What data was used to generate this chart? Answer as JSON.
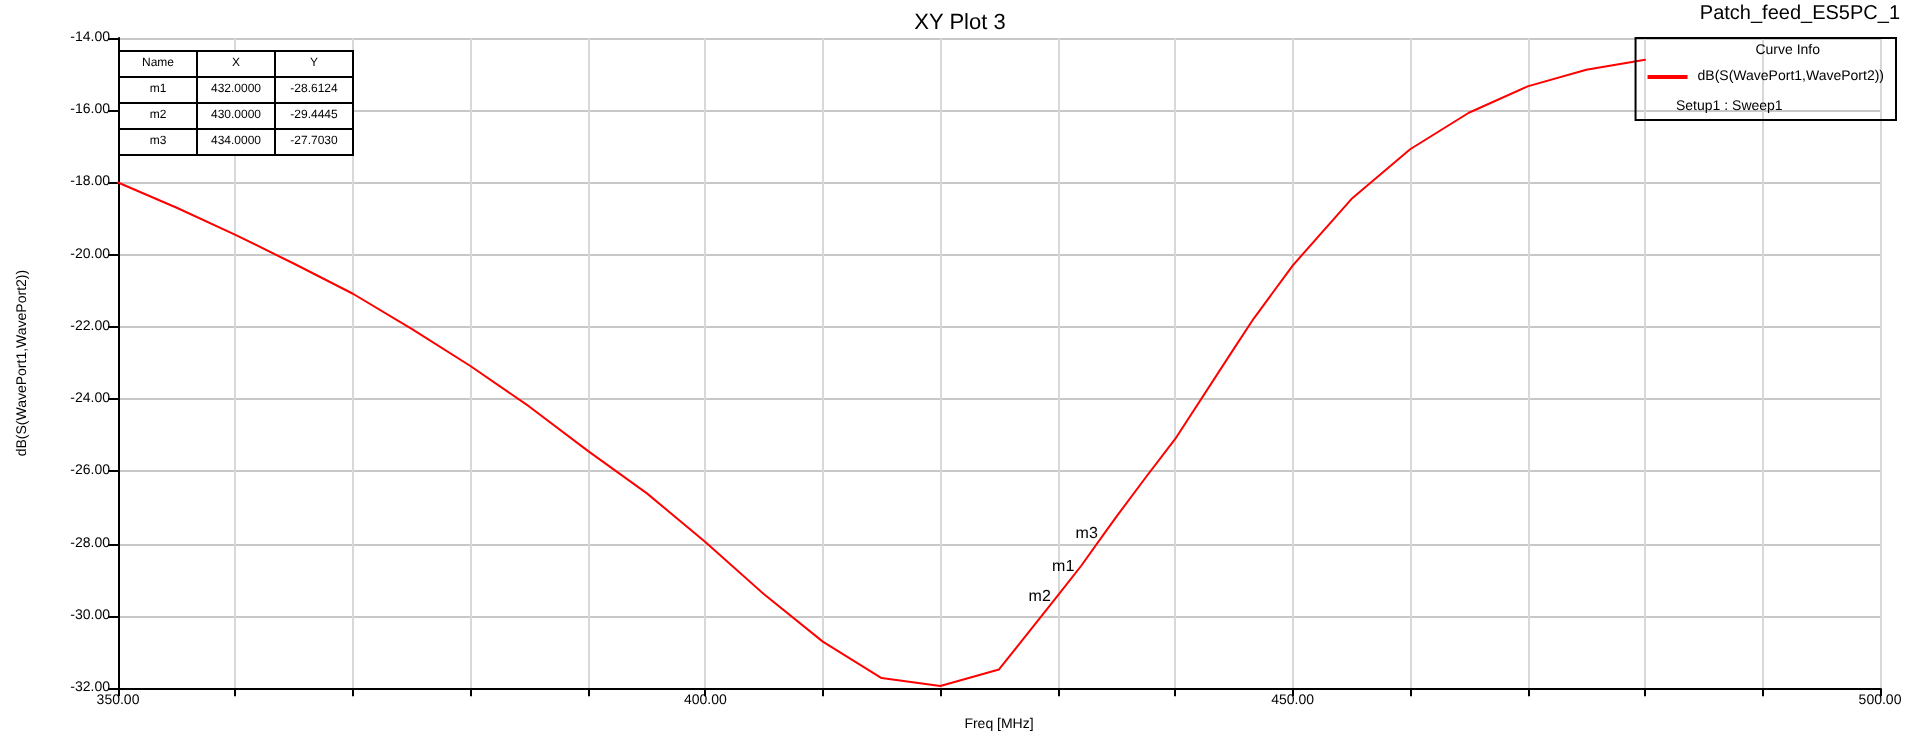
{
  "chart_data": {
    "type": "line",
    "title": "XY Plot 3",
    "xlabel": "Freq [MHz]",
    "ylabel": "dB(S(WavePort1,WavePort2))",
    "legend_title": "Curve Info",
    "x": [
      350,
      355,
      360,
      365,
      370,
      375,
      380,
      385,
      390,
      395,
      400,
      405,
      410,
      415,
      420,
      425,
      430,
      432,
      434,
      435,
      437.5,
      440,
      445,
      446.7,
      450,
      455,
      460,
      465,
      470,
      475,
      480
    ],
    "series": [
      {
        "name": "dB(S(WavePort1,WavePort2))",
        "color": "#ff0000",
        "values": [
          -18.0,
          -18.7,
          -19.45,
          -20.25,
          -21.08,
          -22.05,
          -23.08,
          -24.2,
          -25.43,
          -26.6,
          -27.95,
          -29.4,
          -30.71,
          -31.72,
          -31.94,
          -31.48,
          -29.44,
          -28.61,
          -27.7,
          -27.25,
          -26.16,
          -25.1,
          -22.6,
          -21.76,
          -20.3,
          -18.46,
          -17.08,
          -16.07,
          -15.34,
          -14.88,
          -14.6
        ]
      }
    ],
    "xlim": [
      350,
      500
    ],
    "ylim": [
      -32,
      -14
    ],
    "xticks": [
      {
        "value": 350,
        "label": "350.00"
      },
      {
        "value": 360,
        "label": null
      },
      {
        "value": 370,
        "label": null
      },
      {
        "value": 380,
        "label": null
      },
      {
        "value": 390,
        "label": null
      },
      {
        "value": 400,
        "label": "400.00"
      },
      {
        "value": 410,
        "label": null
      },
      {
        "value": 420,
        "label": null
      },
      {
        "value": 430,
        "label": null
      },
      {
        "value": 440,
        "label": null
      },
      {
        "value": 450,
        "label": "450.00"
      },
      {
        "value": 460,
        "label": null
      },
      {
        "value": 470,
        "label": null
      },
      {
        "value": 480,
        "label": null
      },
      {
        "value": 490,
        "label": null
      },
      {
        "value": 500,
        "label": "500.00"
      }
    ],
    "yticks": [
      {
        "value": -32,
        "label": "-32.00"
      },
      {
        "value": -30,
        "label": "-30.00"
      },
      {
        "value": -28,
        "label": "-28.00"
      },
      {
        "value": -26,
        "label": "-26.00"
      },
      {
        "value": -24,
        "label": "-24.00"
      },
      {
        "value": -22,
        "label": "-22.00"
      },
      {
        "value": -20,
        "label": "-20.00"
      },
      {
        "value": -18,
        "label": "-18.00"
      },
      {
        "value": -16,
        "label": "-16.00"
      },
      {
        "value": -14,
        "label": "-14.00"
      }
    ],
    "grid": true,
    "legend": "top right",
    "marker": "none",
    "line_style": "solid",
    "annotations": [
      "Patch_feed_ES5PC_1",
      "Setup1 : Sweep1",
      "Name",
      "X",
      "Y",
      "m1",
      "432.0000",
      "-28.6124",
      "m2",
      "430.0000",
      "-29.4445",
      "m3",
      "434.0000",
      "-27.7030",
      {
        "text": "m1",
        "x": 432,
        "y": -28.6124
      },
      {
        "text": "m2",
        "x": 430,
        "y": -29.4445
      },
      {
        "text": "m3",
        "x": 434,
        "y": -27.703
      }
    ]
  }
}
